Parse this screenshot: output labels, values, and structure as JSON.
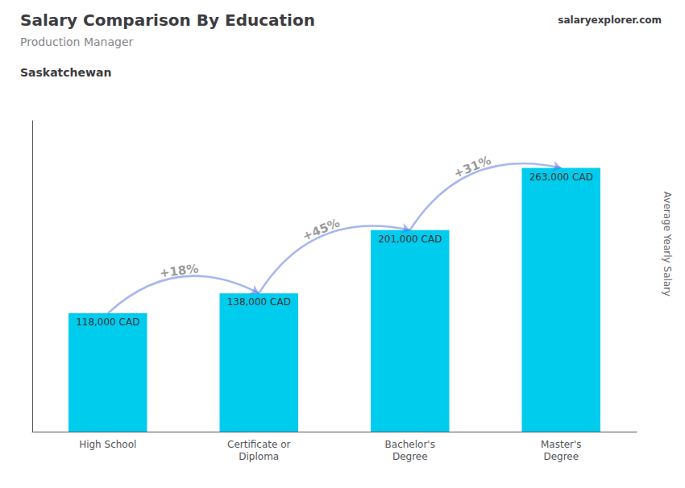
{
  "chart_data": {
    "type": "bar",
    "title": "Salary Comparison By Education",
    "subtitle": "Production Manager",
    "ylabel": "Average Yearly Salary",
    "categories": [
      "High School",
      "Certificate or\nDiploma",
      "Bachelor's\nDegree",
      "Master's\nDegree"
    ],
    "values": [
      118000,
      138000,
      201000,
      263000
    ],
    "value_labels": [
      "118,000 CAD",
      "138,000 CAD",
      "201,000 CAD",
      "263,000 CAD"
    ],
    "data_labels": true,
    "color": "#00ccee",
    "ylim": [
      0,
      310000
    ],
    "tick_labels": "x",
    "grid": false,
    "annotations": [
      {
        "text": "Saskatchewan"
      },
      {
        "text": "salaryexplorer.com"
      },
      {
        "text": "+18%",
        "from": "High School",
        "to": "Certificate or\nDiploma"
      },
      {
        "text": "+45%",
        "from": "Certificate or\nDiploma",
        "to": "Bachelor's\nDegree"
      },
      {
        "text": "+31%",
        "from": "Bachelor's\nDegree",
        "to": "Master's\nDegree"
      }
    ]
  }
}
